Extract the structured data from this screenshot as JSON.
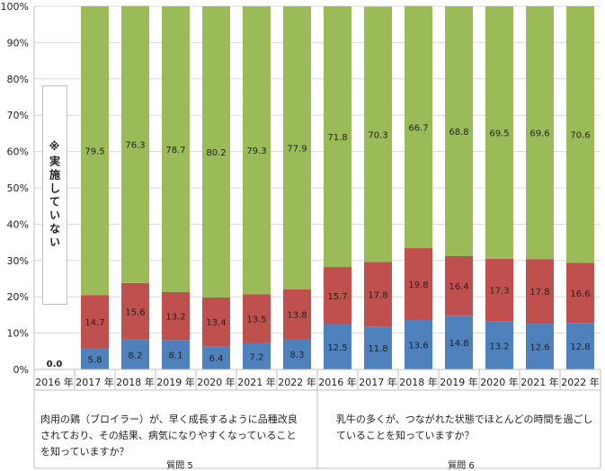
{
  "chart_data": {
    "type": "bar",
    "stacked": true,
    "percent": true,
    "ylim": [
      0,
      100
    ],
    "y_ticks": [
      "0%",
      "10%",
      "20%",
      "30%",
      "40%",
      "50%",
      "60%",
      "70%",
      "80%",
      "90%",
      "100%"
    ],
    "grid": true,
    "groups": [
      {
        "label": "質問 5",
        "question": "肉用の鶏（ブロイラー）が、早く成長するように品種改良\nされており、その結果、病気になりやすくなっていること\nを知っていますか？",
        "categories": [
          "2016 年",
          "2017 年",
          "2018 年",
          "2019 年",
          "2020 年",
          "2021 年",
          "2022 年"
        ],
        "note": "※実施していない",
        "series": [
          {
            "color": "#4f81bd",
            "values": [
              0.0,
              5.8,
              8.2,
              8.1,
              6.4,
              7.2,
              8.3
            ]
          },
          {
            "color": "#c0504d",
            "values": [
              null,
              14.7,
              15.6,
              13.2,
              13.4,
              13.5,
              13.8
            ]
          },
          {
            "color": "#9bbb59",
            "values": [
              null,
              79.5,
              76.3,
              78.7,
              80.2,
              79.3,
              77.9
            ]
          }
        ]
      },
      {
        "label": "質問 6",
        "question": "乳牛の多くが、つながれた状態でほとんどの時間を過ごし\nていることを知っていますか？",
        "categories": [
          "2016 年",
          "2017 年",
          "2018 年",
          "2019 年",
          "2020 年",
          "2021 年",
          "2022 年"
        ],
        "series": [
          {
            "color": "#4f81bd",
            "values": [
              12.5,
              11.8,
              13.6,
              14.8,
              13.2,
              12.6,
              12.8
            ]
          },
          {
            "color": "#c0504d",
            "values": [
              15.7,
              17.8,
              19.8,
              16.4,
              17.3,
              17.8,
              16.6
            ]
          },
          {
            "color": "#9bbb59",
            "values": [
              71.8,
              70.3,
              66.7,
              68.8,
              69.5,
              69.6,
              70.6
            ]
          }
        ]
      }
    ],
    "extra_labels": [
      "0.0"
    ]
  }
}
